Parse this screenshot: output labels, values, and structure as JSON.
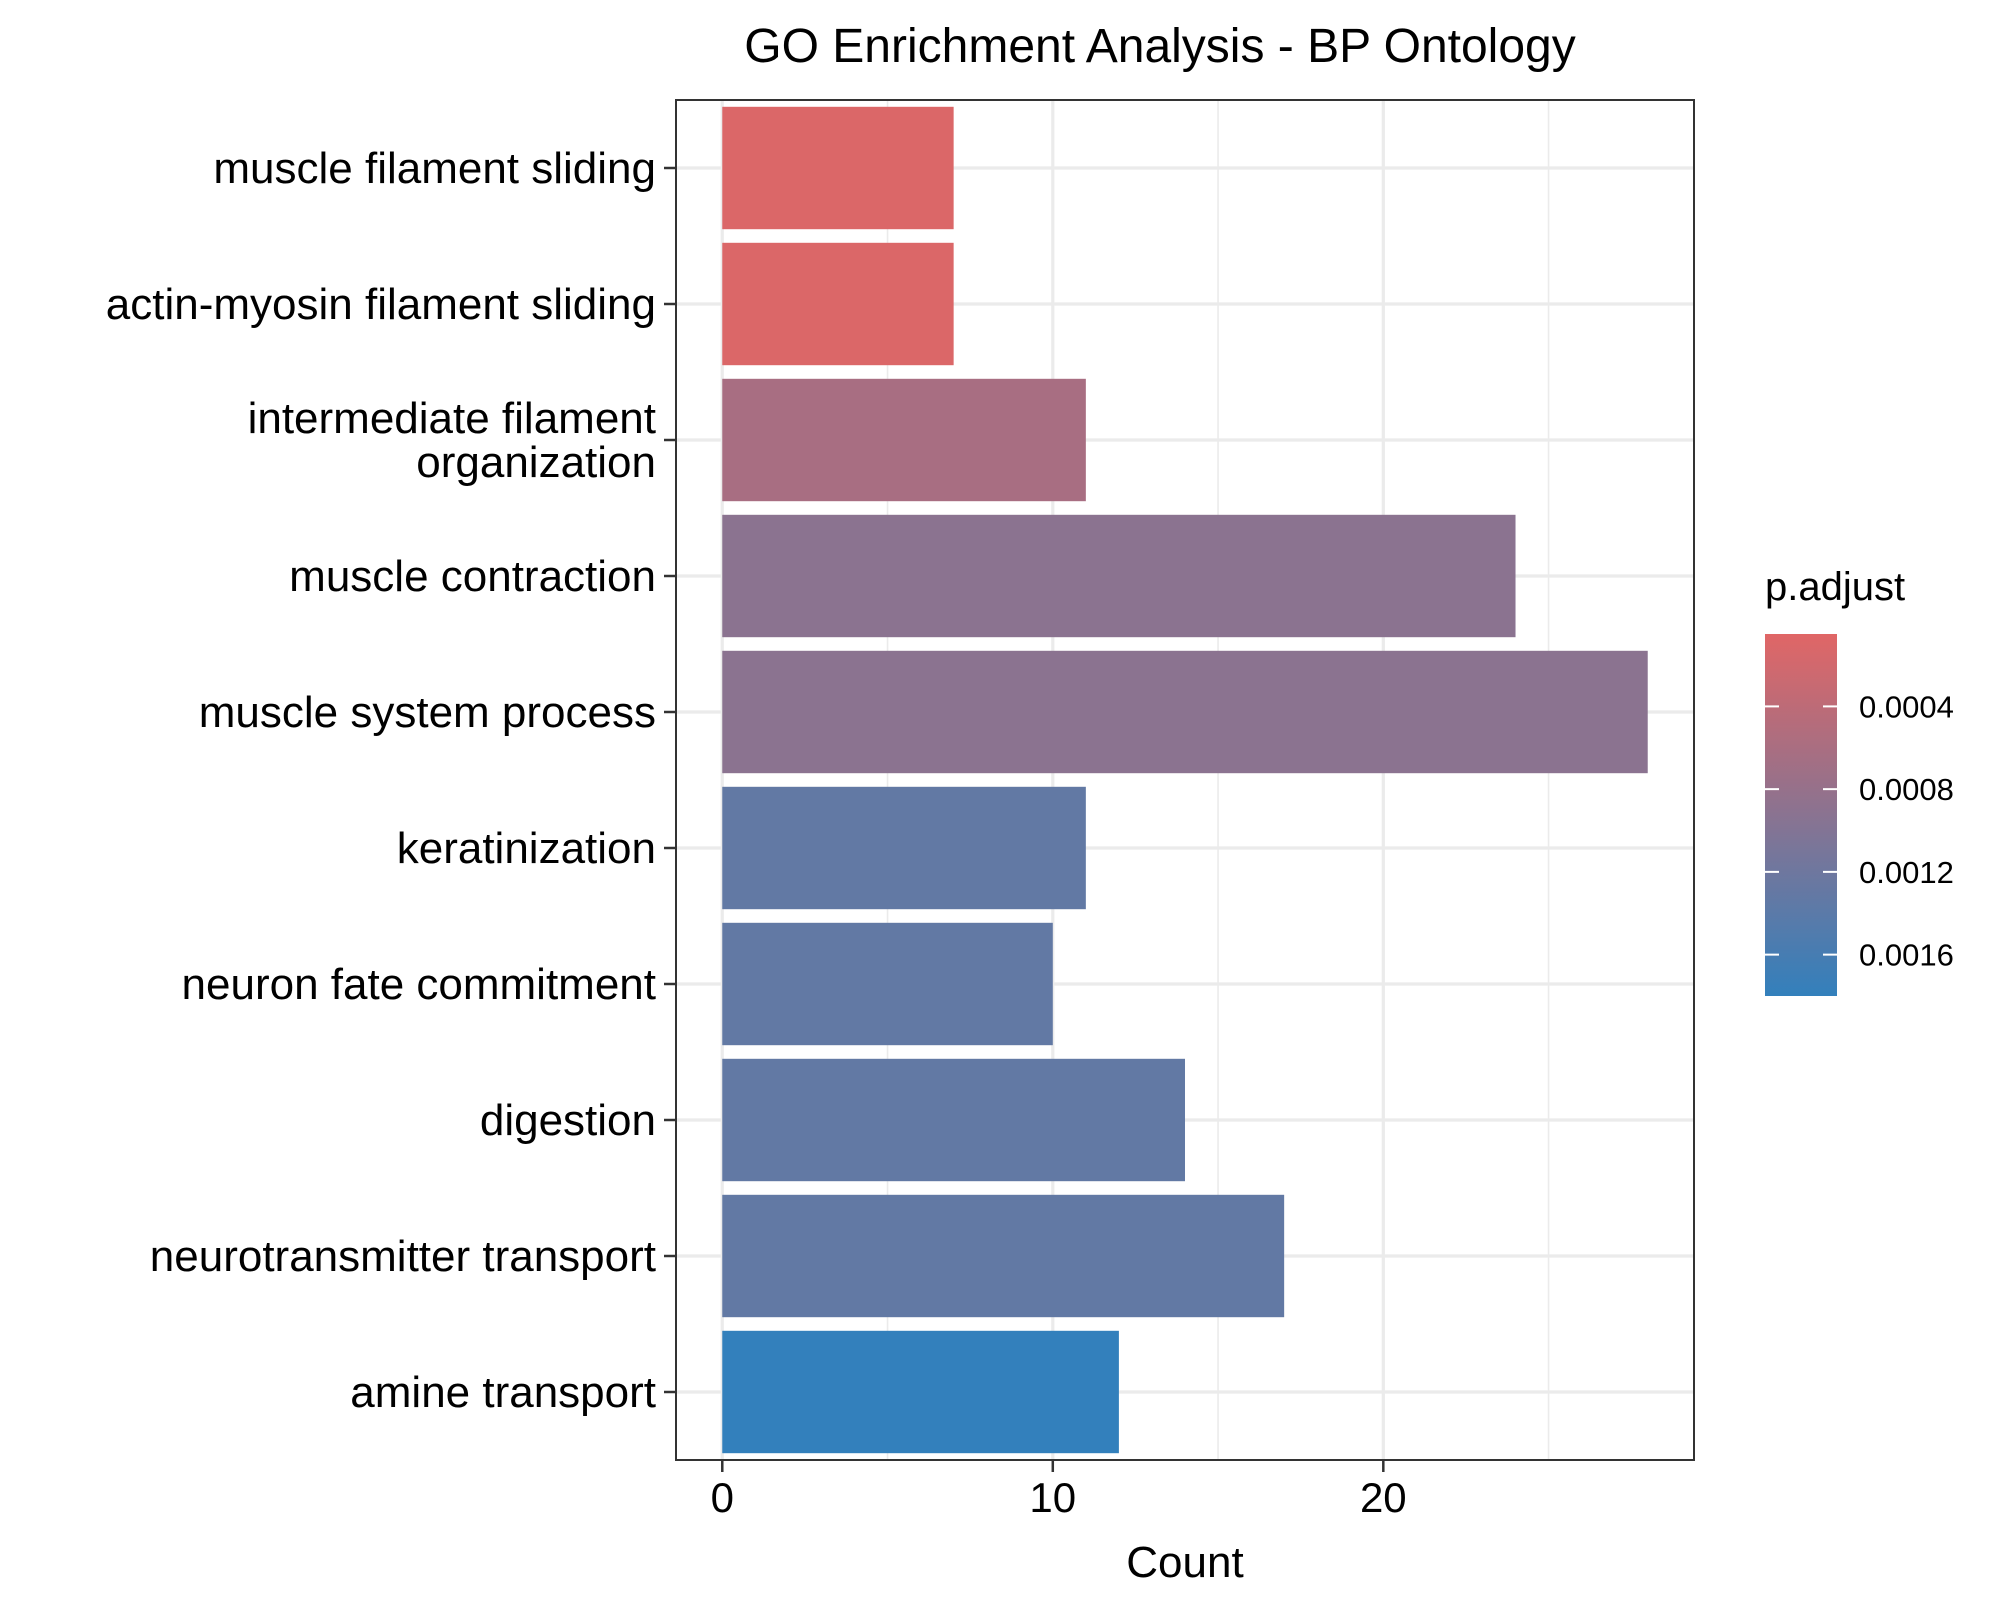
{
  "chart_data": {
    "type": "bar",
    "orientation": "horizontal",
    "title": "GO Enrichment Analysis - BP Ontology",
    "xlabel": "Count",
    "ylabel": "",
    "xlim": [
      -1.4,
      29.4
    ],
    "x_ticks": [
      0,
      10,
      20
    ],
    "grid": true,
    "categories": [
      [
        "muscle filament sliding"
      ],
      [
        "actin-myosin filament sliding"
      ],
      [
        "intermediate filament",
        "organization"
      ],
      [
        "muscle contraction"
      ],
      [
        "muscle system process"
      ],
      [
        "keratinization"
      ],
      [
        "neuron fate commitment"
      ],
      [
        "digestion"
      ],
      [
        "neurotransmitter transport"
      ],
      [
        "amine transport"
      ]
    ],
    "values": [
      7,
      7,
      11,
      24,
      28,
      11,
      10,
      14,
      17,
      12
    ],
    "p_adjust": [
      0.0001,
      0.0001,
      0.00062,
      0.00091,
      0.00091,
      0.00132,
      0.00132,
      0.00132,
      0.00132,
      0.0018
    ],
    "legend": {
      "title": "p.adjust",
      "position": "right",
      "ticks": [
        0.0004,
        0.0008,
        0.0012,
        0.0016
      ],
      "tick_labels": [
        "0.0004",
        "0.0008",
        "0.0012",
        "0.0016"
      ],
      "range": [
        5e-05,
        0.0018
      ],
      "color_low": "#E06666",
      "color_high": "#3380BC"
    }
  }
}
